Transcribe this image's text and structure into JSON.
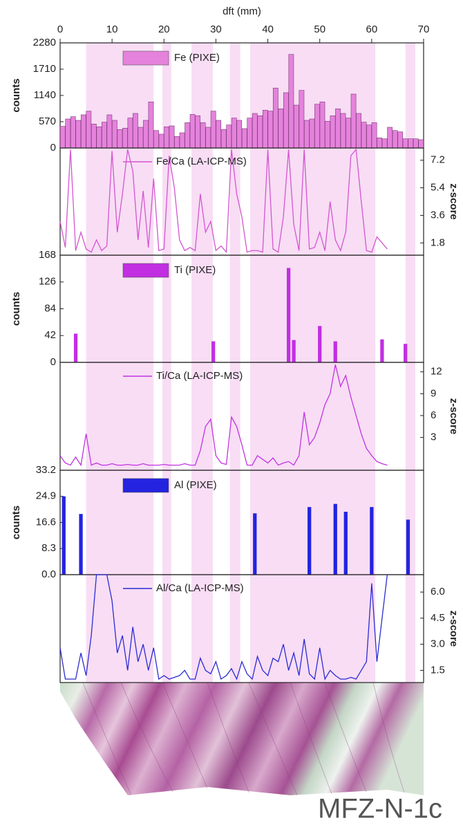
{
  "chart_data": [
    {
      "type": "bar",
      "xlabel": "dft (mm)",
      "xlim": [
        0,
        70
      ],
      "xticks": [
        0,
        10,
        20,
        30,
        40,
        50,
        60,
        70
      ],
      "shaded_ranges": [
        [
          5,
          18
        ],
        [
          19.7,
          21.4
        ],
        [
          25.3,
          29.4
        ],
        [
          32.7,
          34.7
        ],
        [
          36.6,
          60.7
        ],
        [
          66.5,
          68.4
        ]
      ],
      "ylabel": "counts",
      "ylim": [
        0,
        2280
      ],
      "yticks": [
        0,
        570,
        1140,
        1710,
        2280
      ],
      "x": [
        0.5,
        1.5,
        2.5,
        3.5,
        4.5,
        5.5,
        6.5,
        7.5,
        8.5,
        9.5,
        10.5,
        11.5,
        12.5,
        13.5,
        14.5,
        15.5,
        16.5,
        17.5,
        18.5,
        19.5,
        20.5,
        21.5,
        22.5,
        23.5,
        24.5,
        25.5,
        26.5,
        27.5,
        28.5,
        29.5,
        30.5,
        31.5,
        32.5,
        33.5,
        34.5,
        35.5,
        36.5,
        37.5,
        38.5,
        39.5,
        40.5,
        41.5,
        42.5,
        43.5,
        44.5,
        45.5,
        46.5,
        47.5,
        48.5,
        49.5,
        50.5,
        51.5,
        52.5,
        53.5,
        54.5,
        55.5,
        56.5,
        57.5,
        58.5,
        59.5,
        60.5,
        61.5,
        62.5,
        63.5,
        64.5,
        65.5,
        66.5,
        67.5,
        68.5,
        69.5
      ],
      "series": [
        {
          "name": "Fe (PIXE)",
          "color": "#e582dc",
          "values": [
            470,
            630,
            680,
            600,
            720,
            800,
            520,
            460,
            560,
            720,
            600,
            400,
            430,
            650,
            750,
            450,
            600,
            1000,
            380,
            300,
            460,
            480,
            250,
            330,
            550,
            730,
            700,
            550,
            450,
            800,
            600,
            400,
            500,
            650,
            600,
            420,
            650,
            750,
            700,
            820,
            800,
            1300,
            850,
            1200,
            2030,
            930,
            1250,
            600,
            630,
            950,
            1000,
            580,
            700,
            850,
            750,
            650,
            1170,
            750,
            560,
            500,
            550,
            220,
            200,
            450,
            380,
            350,
            200,
            200,
            200,
            180
          ]
        }
      ]
    },
    {
      "type": "line",
      "xlim": [
        0,
        70
      ],
      "y2label": "z-score",
      "y2lim": [
        1,
        8
      ],
      "y2ticks": [
        1.8,
        3.6,
        5.4,
        7.2
      ],
      "x": [
        0,
        1,
        2,
        3,
        4,
        5,
        6,
        7,
        8,
        9,
        10,
        11,
        12,
        13,
        14,
        15,
        16,
        17,
        18,
        19,
        20,
        21,
        22,
        23,
        24,
        25,
        26,
        27,
        28,
        29,
        30,
        31,
        32,
        33,
        34,
        35,
        36,
        37,
        38,
        39,
        40,
        41,
        42,
        43,
        44,
        45,
        46,
        47,
        48,
        49,
        50,
        51,
        52,
        53,
        54,
        55,
        56,
        57,
        58,
        59,
        60,
        61,
        62,
        63,
        64,
        65,
        66,
        67,
        68,
        69,
        70
      ],
      "series": [
        {
          "name": "Fe/Ca (LA-ICP-MS)",
          "color": "#d455d0",
          "axis": "y2",
          "values": [
            3.2,
            1.5,
            7.9,
            1.3,
            2.5,
            1.4,
            1.2,
            2.0,
            1.3,
            1.6,
            7.8,
            2.5,
            5.0,
            7.9,
            6.5,
            2.0,
            5.2,
            1.5,
            6.0,
            1.3,
            1.4,
            7.5,
            5.4,
            2.0,
            1.3,
            1.5,
            1.3,
            5.0,
            2.5,
            3.2,
            1.3,
            1.6,
            1.2,
            7.9,
            5.0,
            3.5,
            1.2,
            1.3,
            1.3,
            1.2,
            7.9,
            1.4,
            1.2,
            3.5,
            7.9,
            3.0,
            1.3,
            7.9,
            1.4,
            1.5,
            2.5,
            1.3,
            4.5,
            2.0,
            1.3,
            2.5,
            7.5,
            7.9,
            4.5,
            1.3,
            1.2,
            2.2,
            1.8,
            1.4,
            null,
            null,
            null,
            null,
            null,
            null,
            null
          ]
        }
      ]
    },
    {
      "type": "bar",
      "xlim": [
        0,
        70
      ],
      "ylabel": "counts",
      "ylim": [
        0,
        168
      ],
      "yticks": [
        0,
        42,
        84,
        126,
        168
      ],
      "x": [
        3,
        29.5,
        44,
        45,
        50,
        53,
        62,
        66.5
      ],
      "series": [
        {
          "name": "Ti (PIXE)",
          "color": "#c22ee2",
          "values": [
            45,
            33,
            148,
            35,
            57,
            33,
            36,
            29
          ]
        }
      ]
    },
    {
      "type": "line",
      "xlim": [
        0,
        70
      ],
      "y2label": "z-score",
      "y2lim": [
        -1.5,
        13.3
      ],
      "y2ticks": [
        3,
        6,
        9,
        12
      ],
      "x": [
        0,
        1,
        2,
        3,
        4,
        5,
        6,
        7,
        8,
        9,
        10,
        11,
        12,
        13,
        14,
        15,
        16,
        17,
        18,
        19,
        20,
        21,
        22,
        23,
        24,
        25,
        26,
        27,
        28,
        29,
        30,
        31,
        32,
        33,
        34,
        35,
        36,
        37,
        38,
        39,
        40,
        41,
        42,
        43,
        44,
        45,
        46,
        47,
        48,
        49,
        50,
        51,
        52,
        53,
        54,
        55,
        56,
        57,
        58,
        59,
        60,
        61,
        62,
        63,
        64,
        65,
        66,
        67,
        68,
        69,
        70
      ],
      "series": [
        {
          "name": "Ti/Ca (LA-ICP-MS)",
          "color": "#c232e2",
          "axis": "y2",
          "values": [
            0.5,
            -0.5,
            -0.8,
            0.3,
            -0.8,
            3.5,
            -0.8,
            -0.5,
            -0.8,
            -0.8,
            -0.6,
            -0.8,
            -0.8,
            -0.7,
            -0.8,
            -0.8,
            -0.6,
            -0.8,
            -0.8,
            -0.8,
            -0.7,
            -0.8,
            -0.8,
            -0.8,
            -0.6,
            -0.8,
            -0.8,
            1.2,
            4.5,
            5.5,
            0.5,
            -0.5,
            -0.7,
            5.8,
            4.5,
            2.0,
            -0.8,
            -0.8,
            0.5,
            0,
            -0.5,
            0.2,
            -0.8,
            -0.5,
            -0.3,
            -0.8,
            0.5,
            6.5,
            2.0,
            3.0,
            5.0,
            7.5,
            9.0,
            13.0,
            10.0,
            11.5,
            8.5,
            6.0,
            3.5,
            1.5,
            0.5,
            -0.3,
            -0.6,
            -0.8,
            null,
            null,
            null,
            null,
            null,
            null,
            null
          ]
        }
      ]
    },
    {
      "type": "bar",
      "xlim": [
        0,
        70
      ],
      "ylabel": "counts",
      "ylim": [
        0,
        33.2
      ],
      "yticks": [
        {
          "value": 0,
          "label": "0.0"
        },
        8.3,
        16.6,
        24.9,
        33.2
      ],
      "x": [
        0.7,
        4,
        37.5,
        48,
        53,
        55,
        60,
        67
      ],
      "series": [
        {
          "name": "Al (PIXE)",
          "color": "#2323e0",
          "values": [
            24.9,
            19.3,
            19.5,
            21.5,
            22.5,
            20,
            21.5,
            17.5
          ]
        }
      ]
    },
    {
      "type": "line",
      "xlim": [
        0,
        70
      ],
      "y2label": "z-score",
      "y2lim": [
        0.8,
        7.0
      ],
      "y2ticks": [
        1.5,
        {
          "value": 3,
          "label": "3.0"
        },
        4.5,
        {
          "value": 6,
          "label": "6.0"
        }
      ],
      "x": [
        0,
        1,
        2,
        3,
        4,
        5,
        6,
        7,
        8,
        9,
        10,
        11,
        12,
        13,
        14,
        15,
        16,
        17,
        18,
        19,
        20,
        21,
        22,
        23,
        24,
        25,
        26,
        27,
        28,
        29,
        30,
        31,
        32,
        33,
        34,
        35,
        36,
        37,
        38,
        39,
        40,
        41,
        42,
        43,
        44,
        45,
        46,
        47,
        48,
        49,
        50,
        51,
        52,
        53,
        54,
        55,
        56,
        57,
        58,
        59,
        60,
        61,
        62,
        63,
        64,
        65,
        66,
        67,
        68,
        69,
        70
      ],
      "series": [
        {
          "name": "Al/Ca (LA-ICP-MS)",
          "color": "#2b2bd2",
          "axis": "y2",
          "values": [
            2.8,
            1.0,
            1.0,
            1.0,
            2.5,
            1.2,
            3.5,
            7.0,
            7.0,
            7.0,
            5.5,
            2.5,
            3.5,
            1.5,
            4.0,
            2.0,
            3.0,
            1.5,
            2.8,
            1.0,
            1.2,
            1.0,
            1.1,
            1.2,
            1.5,
            1.0,
            1.0,
            2.2,
            1.5,
            1.3,
            2.0,
            1.0,
            1.2,
            1.6,
            1.0,
            2.0,
            1.3,
            1.0,
            2.3,
            1.5,
            1.2,
            2.2,
            2.0,
            3.0,
            1.5,
            2.5,
            1.2,
            3.3,
            1.3,
            1.0,
            2.8,
            1.0,
            1.5,
            1.2,
            1.0,
            1.0,
            1.1,
            1.0,
            1.5,
            2.0,
            6.5,
            2.0,
            4.5,
            7.0,
            null,
            null,
            null,
            null,
            null,
            null,
            null
          ]
        }
      ]
    }
  ],
  "sample_label": "MFZ-N-1c"
}
